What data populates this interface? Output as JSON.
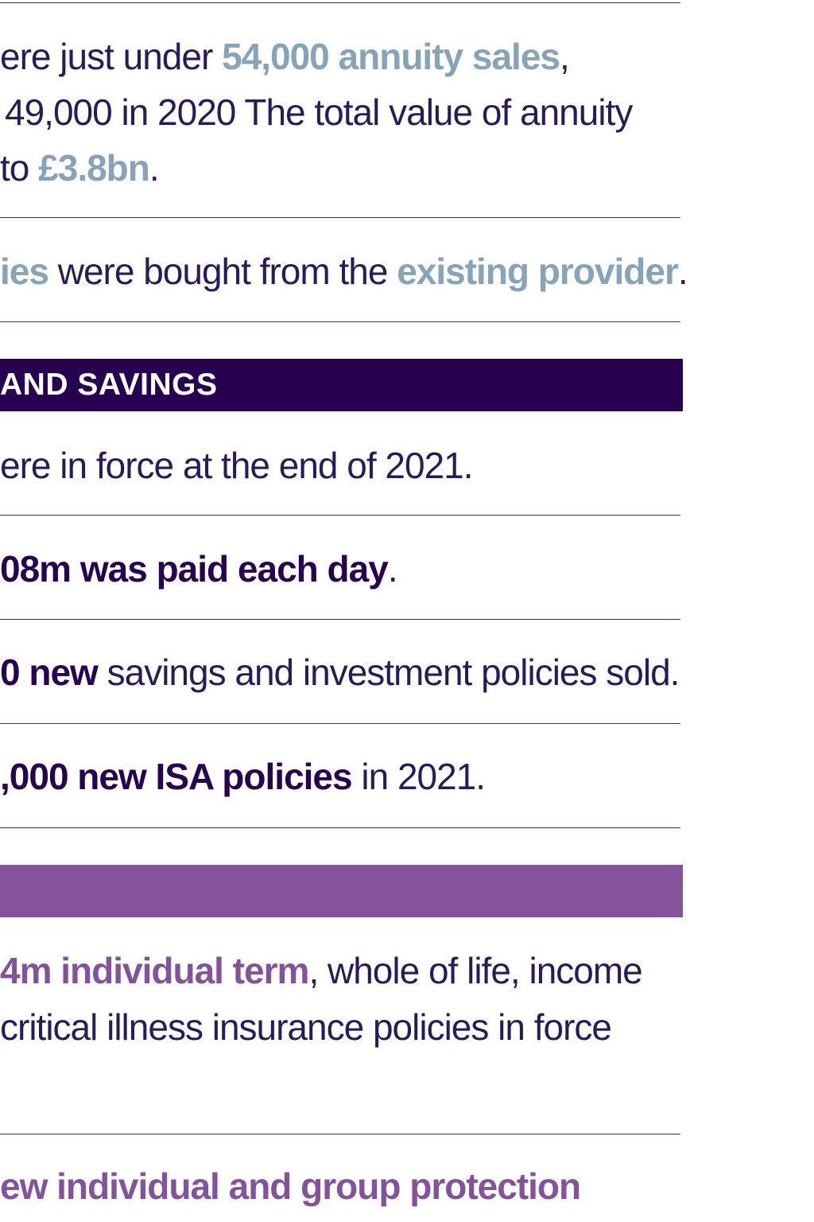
{
  "annuities": {
    "line1": {
      "prefix": "ere just under ",
      "highlight": "54,000 annuity sales",
      "suffix": ","
    },
    "line2": "49,000 in 2020 The total value of annuity",
    "line3": {
      "prefix": "to ",
      "highlight": "£3.8bn",
      "suffix": "."
    },
    "provider": {
      "highlight1": "ies",
      "middle": " were bought from the ",
      "highlight2": "existing provider",
      "suffix": "."
    }
  },
  "investments_section": {
    "title": "AND SAVINGS",
    "line1": "ere in force at the end of 2021.",
    "line2": {
      "highlight": "08m was paid each day",
      "suffix": "."
    },
    "line3": {
      "highlight": "0 new",
      "suffix": " savings and investment policies sold."
    },
    "line4": {
      "highlight": ",000 new ISA policies",
      "suffix": " in 2021."
    }
  },
  "protection_section": {
    "line1": {
      "highlight": "4m individual term",
      "suffix": ", whole of life, income"
    },
    "line2": "critical illness insurance policies in force",
    "line3": "ew individual and group protection"
  },
  "colors": {
    "dark_band": "#280050",
    "purple_band": "#84529b",
    "blue_highlight": "#86a3b8",
    "body_text": "#2a1a5a"
  }
}
